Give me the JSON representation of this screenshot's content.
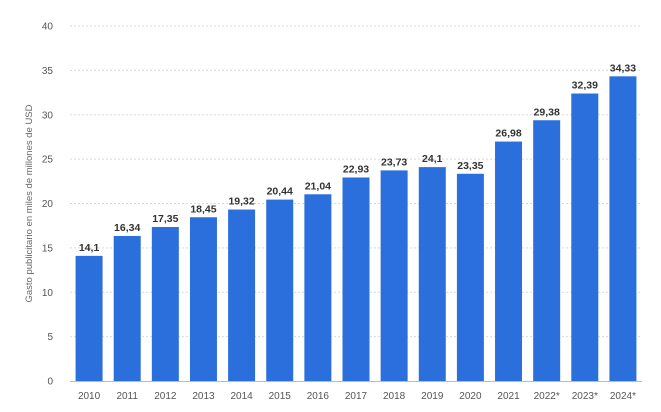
{
  "chart_data": {
    "type": "bar",
    "categories": [
      "2010",
      "2011",
      "2012",
      "2013",
      "2014",
      "2015",
      "2016",
      "2017",
      "2018",
      "2019",
      "2020",
      "2021",
      "2022*",
      "2023*",
      "2024*"
    ],
    "values": [
      14.1,
      16.34,
      17.35,
      18.45,
      19.32,
      20.44,
      21.04,
      22.93,
      23.73,
      24.1,
      23.35,
      26.98,
      29.38,
      32.39,
      34.33
    ],
    "value_labels": [
      "14,1",
      "16,34",
      "17,35",
      "18,45",
      "19,32",
      "20,44",
      "21,04",
      "22,93",
      "23,73",
      "24,1",
      "23,35",
      "26,98",
      "29,38",
      "32,39",
      "34,33"
    ],
    "ylabel": "Gasto publicitario en miles de millones de USD",
    "ylim": [
      0,
      40
    ],
    "yticks": [
      0,
      5,
      10,
      15,
      20,
      25,
      30,
      35,
      40
    ],
    "grid": true,
    "legend": "none",
    "bar_color": "#2b6fdc"
  }
}
